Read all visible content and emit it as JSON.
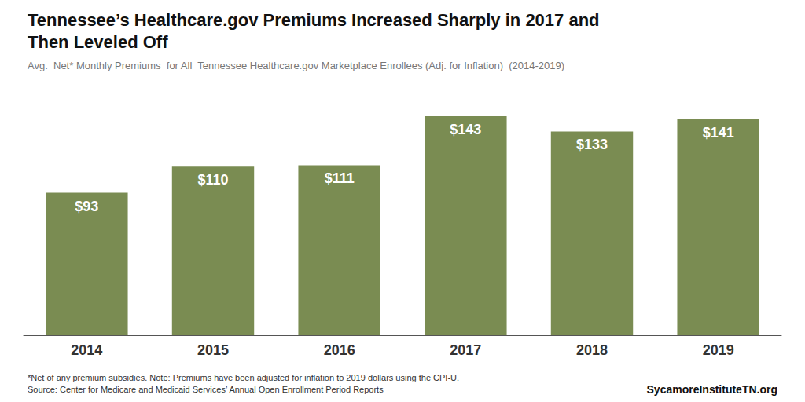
{
  "chart_data": {
    "type": "bar",
    "title": "Tennessee’s Healthcare.gov Premiums Increased Sharply in 2017 and\nThen Leveled Off",
    "subtitle": "Avg.  Net* Monthly Premiums  for All  Tennessee Healthcare.gov Marketplace Enrollees (Adj. for Inflation)  (2014-2019)",
    "annotations": [
      "*Net of any premium subsidies. Note: Premiums have been adjusted for inflation to 2019 dollars using the CPI-U.\nSource: Center for Medicare and Medicaid Services’ Annual Open Enrollment Period Reports",
      "SycamoreInstituteTN.org"
    ],
    "categories": [
      "2014",
      "2015",
      "2016",
      "2017",
      "2018",
      "2019"
    ],
    "values": [
      93,
      110,
      111,
      143,
      133,
      141
    ],
    "value_labels": [
      "$93",
      "$110",
      "$111",
      "$143",
      "$133",
      "$141"
    ],
    "color": "#7a8c52",
    "ylim": [
      0,
      165
    ],
    "grid": false,
    "data_labels": true,
    "tick_labels": "x"
  }
}
